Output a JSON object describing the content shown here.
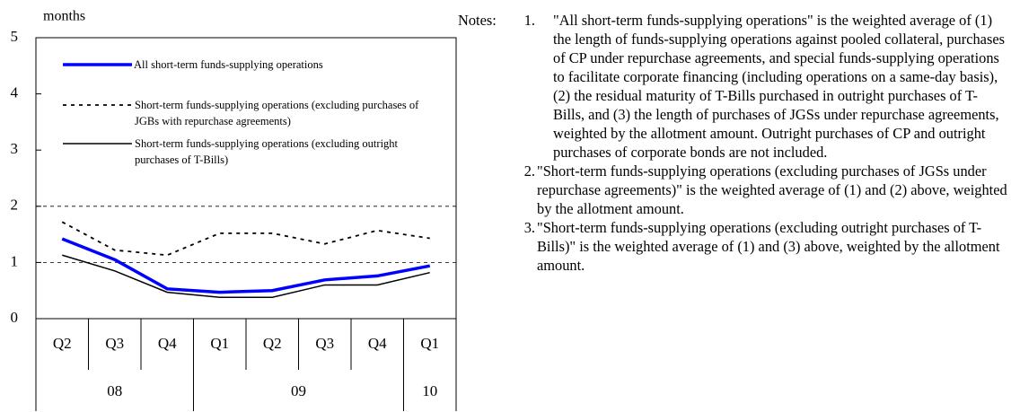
{
  "chart_data": {
    "type": "line",
    "ylabel": "months",
    "categories": [
      "Q2",
      "Q3",
      "Q4",
      "Q1",
      "Q2",
      "Q3",
      "Q4",
      "Q1"
    ],
    "category_years": [
      "08",
      null,
      null,
      "09",
      null,
      null,
      null,
      "10"
    ],
    "ylim": [
      0,
      5
    ],
    "yticks": [
      0,
      1,
      2,
      3,
      4,
      5
    ],
    "grid_values": [
      1,
      2
    ],
    "series": [
      {
        "name": "All short-term funds-supplying operations",
        "color": "#0000ff",
        "line_style": "solid",
        "linewidth": 3.5,
        "values": [
          1.42,
          1.05,
          0.53,
          0.47,
          0.5,
          0.69,
          0.76,
          0.94
        ]
      },
      {
        "name": "Short-term funds-supplying operations (excluding purchases of JGBs with repurchase agreements)",
        "color": "#000000",
        "line_style": "dashed",
        "linewidth": 1.8,
        "values": [
          1.72,
          1.22,
          1.13,
          1.52,
          1.52,
          1.33,
          1.57,
          1.43
        ]
      },
      {
        "name": "Short-term funds-supplying operations (excluding outright purchases of T-Bills)",
        "color": "#000000",
        "line_style": "solid",
        "linewidth": 1.5,
        "values": [
          1.13,
          0.85,
          0.47,
          0.38,
          0.38,
          0.6,
          0.6,
          0.82
        ]
      }
    ]
  },
  "notes": {
    "label": "Notes:",
    "items": [
      {
        "number": "1.",
        "text": "\"All short-term funds-supplying operations\" is the weighted average of (1) the length of funds-supplying operations against pooled collateral, purchases of CP under repurchase agreements, and special funds-supplying operations to facilitate corporate financing (including operations on a same-day basis), (2) the residual maturity of T-Bills purchased in outright purchases of T-Bills, and (3) the length of purchases of JGSs under repurchase agreements, weighted by the allotment amount. Outright purchases of CP and outright purchases of corporate bonds are not included."
      },
      {
        "number": "2.",
        "text": "\"Short-term funds-supplying operations (excluding purchases of JGSs under repurchase agreements)\" is the weighted average of (1) and (2) above, weighted by the allotment amount."
      },
      {
        "number": "3.",
        "text": "\"Short-term funds-supplying operations (excluding outright purchases of T-Bills)\" is the weighted average of (1) and (3) above, weighted by the allotment amount."
      }
    ]
  }
}
